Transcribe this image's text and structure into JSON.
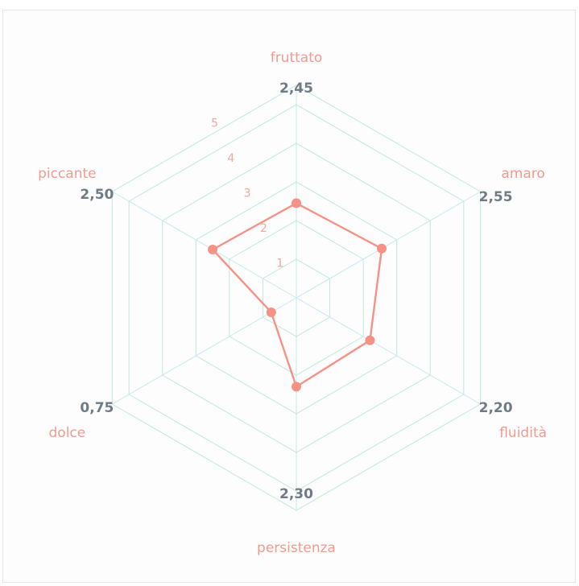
{
  "chart_data": {
    "type": "radar",
    "axes": [
      "fruttato",
      "amaro",
      "fluidità",
      "persistenza",
      "dolce",
      "piccante"
    ],
    "values": [
      2.45,
      2.55,
      2.2,
      2.3,
      0.75,
      2.5
    ],
    "value_labels": [
      "2,45",
      "2,55",
      "2,20",
      "2,30",
      "0,75",
      "2,50"
    ],
    "rlim": [
      0,
      5.5
    ],
    "ticks": [
      1,
      2,
      3,
      4,
      5
    ],
    "grid": true,
    "colors": {
      "series": "#f59287",
      "grid": "#bfeadb",
      "spoke": "#c6e9f2",
      "axis_label": "#f29a8f",
      "value_label": "#6f7b86",
      "tick_label": "#f3a99d"
    }
  }
}
